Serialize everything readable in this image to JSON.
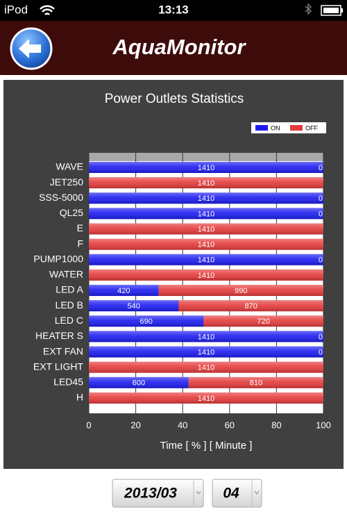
{
  "status_bar": {
    "carrier": "iPod",
    "time": "13:13"
  },
  "header": {
    "title": "AquaMonitor"
  },
  "chart_data": {
    "type": "stacked-bar-horizontal",
    "title": "Power Outlets Statistics",
    "x_label": "Time [ % ] [ Minute ]",
    "categories": [
      "WAVE",
      "JET250",
      "SSS-5000",
      "QL25",
      "E",
      "F",
      "PUMP1000",
      "WATER",
      "LED A",
      "LED B",
      "LED C",
      "HEATER S",
      "EXT FAN",
      "EXT LIGHT",
      "LED45",
      "H"
    ],
    "series": [
      {
        "name": "ON",
        "color": "#1c1cf0",
        "values": [
          100,
          0,
          100,
          100,
          0,
          0,
          100,
          0,
          29.79,
          38.3,
          48.94,
          100,
          100,
          0,
          42.55,
          0
        ],
        "value_labels": [
          "1410",
          "0",
          "1410",
          "1410",
          "0",
          "0",
          "1410",
          "0",
          "420",
          "540",
          "690",
          "1410",
          "1410",
          "0",
          "600",
          "0"
        ]
      },
      {
        "name": "OFF",
        "color": "#e43a3a",
        "values": [
          0,
          100,
          0,
          0,
          100,
          100,
          0,
          100,
          70.21,
          61.7,
          51.06,
          0,
          0,
          100,
          57.45,
          100
        ],
        "value_labels": [
          "0",
          "1410",
          "0",
          "0",
          "1410",
          "1410",
          "0",
          "1410",
          "990",
          "870",
          "720",
          "0",
          "0",
          "1410",
          "810",
          "1410"
        ]
      }
    ],
    "xlim": [
      0,
      100
    ],
    "xticks": [
      0,
      20,
      40,
      60,
      80,
      100
    ],
    "grid": true,
    "legend": "top-right"
  },
  "footer": {
    "month": "2013/03",
    "day": "04"
  }
}
